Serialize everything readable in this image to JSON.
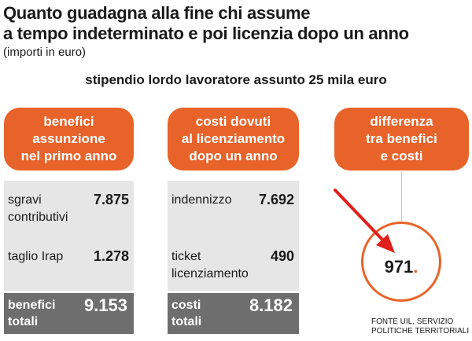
{
  "title": "Quanto guadagna alla fine chi assume\na tempo indeterminato e poi licenzia dopo un anno",
  "subtitle": "(importi in euro)",
  "headline": "stipendio lordo lavoratore assunto 25 mila euro",
  "benefici": {
    "header": "benefici\nassunzione\nnel primo anno",
    "items": [
      {
        "label": "sgravi\ncontributivi",
        "value": "7.875"
      },
      {
        "label": "taglio Irap",
        "value": "1.278"
      }
    ],
    "total_label": "benefici\ntotali",
    "total_value": "9.153"
  },
  "costi": {
    "header": "costi dovuti\nal licenziamento\ndopo un anno",
    "items": [
      {
        "label": "indennizzo",
        "value": "7.692"
      },
      {
        "label": "ticket\nlicenziamento",
        "value": "490"
      }
    ],
    "total_label": "costi\ntotali",
    "total_value": "8.182"
  },
  "differenza": {
    "header": "differenza\ntra benefici\ne costi",
    "value": "971",
    "value_suffix": "."
  },
  "source": "FONTE UIL, SERVIZIO\nPOLITICHE TERRITORIALI",
  "colors": {
    "accent": "#e8632a",
    "arrow": "#e0201c",
    "total_bg": "#6e6e6e",
    "panel_bg": "#e6e6e6"
  }
}
